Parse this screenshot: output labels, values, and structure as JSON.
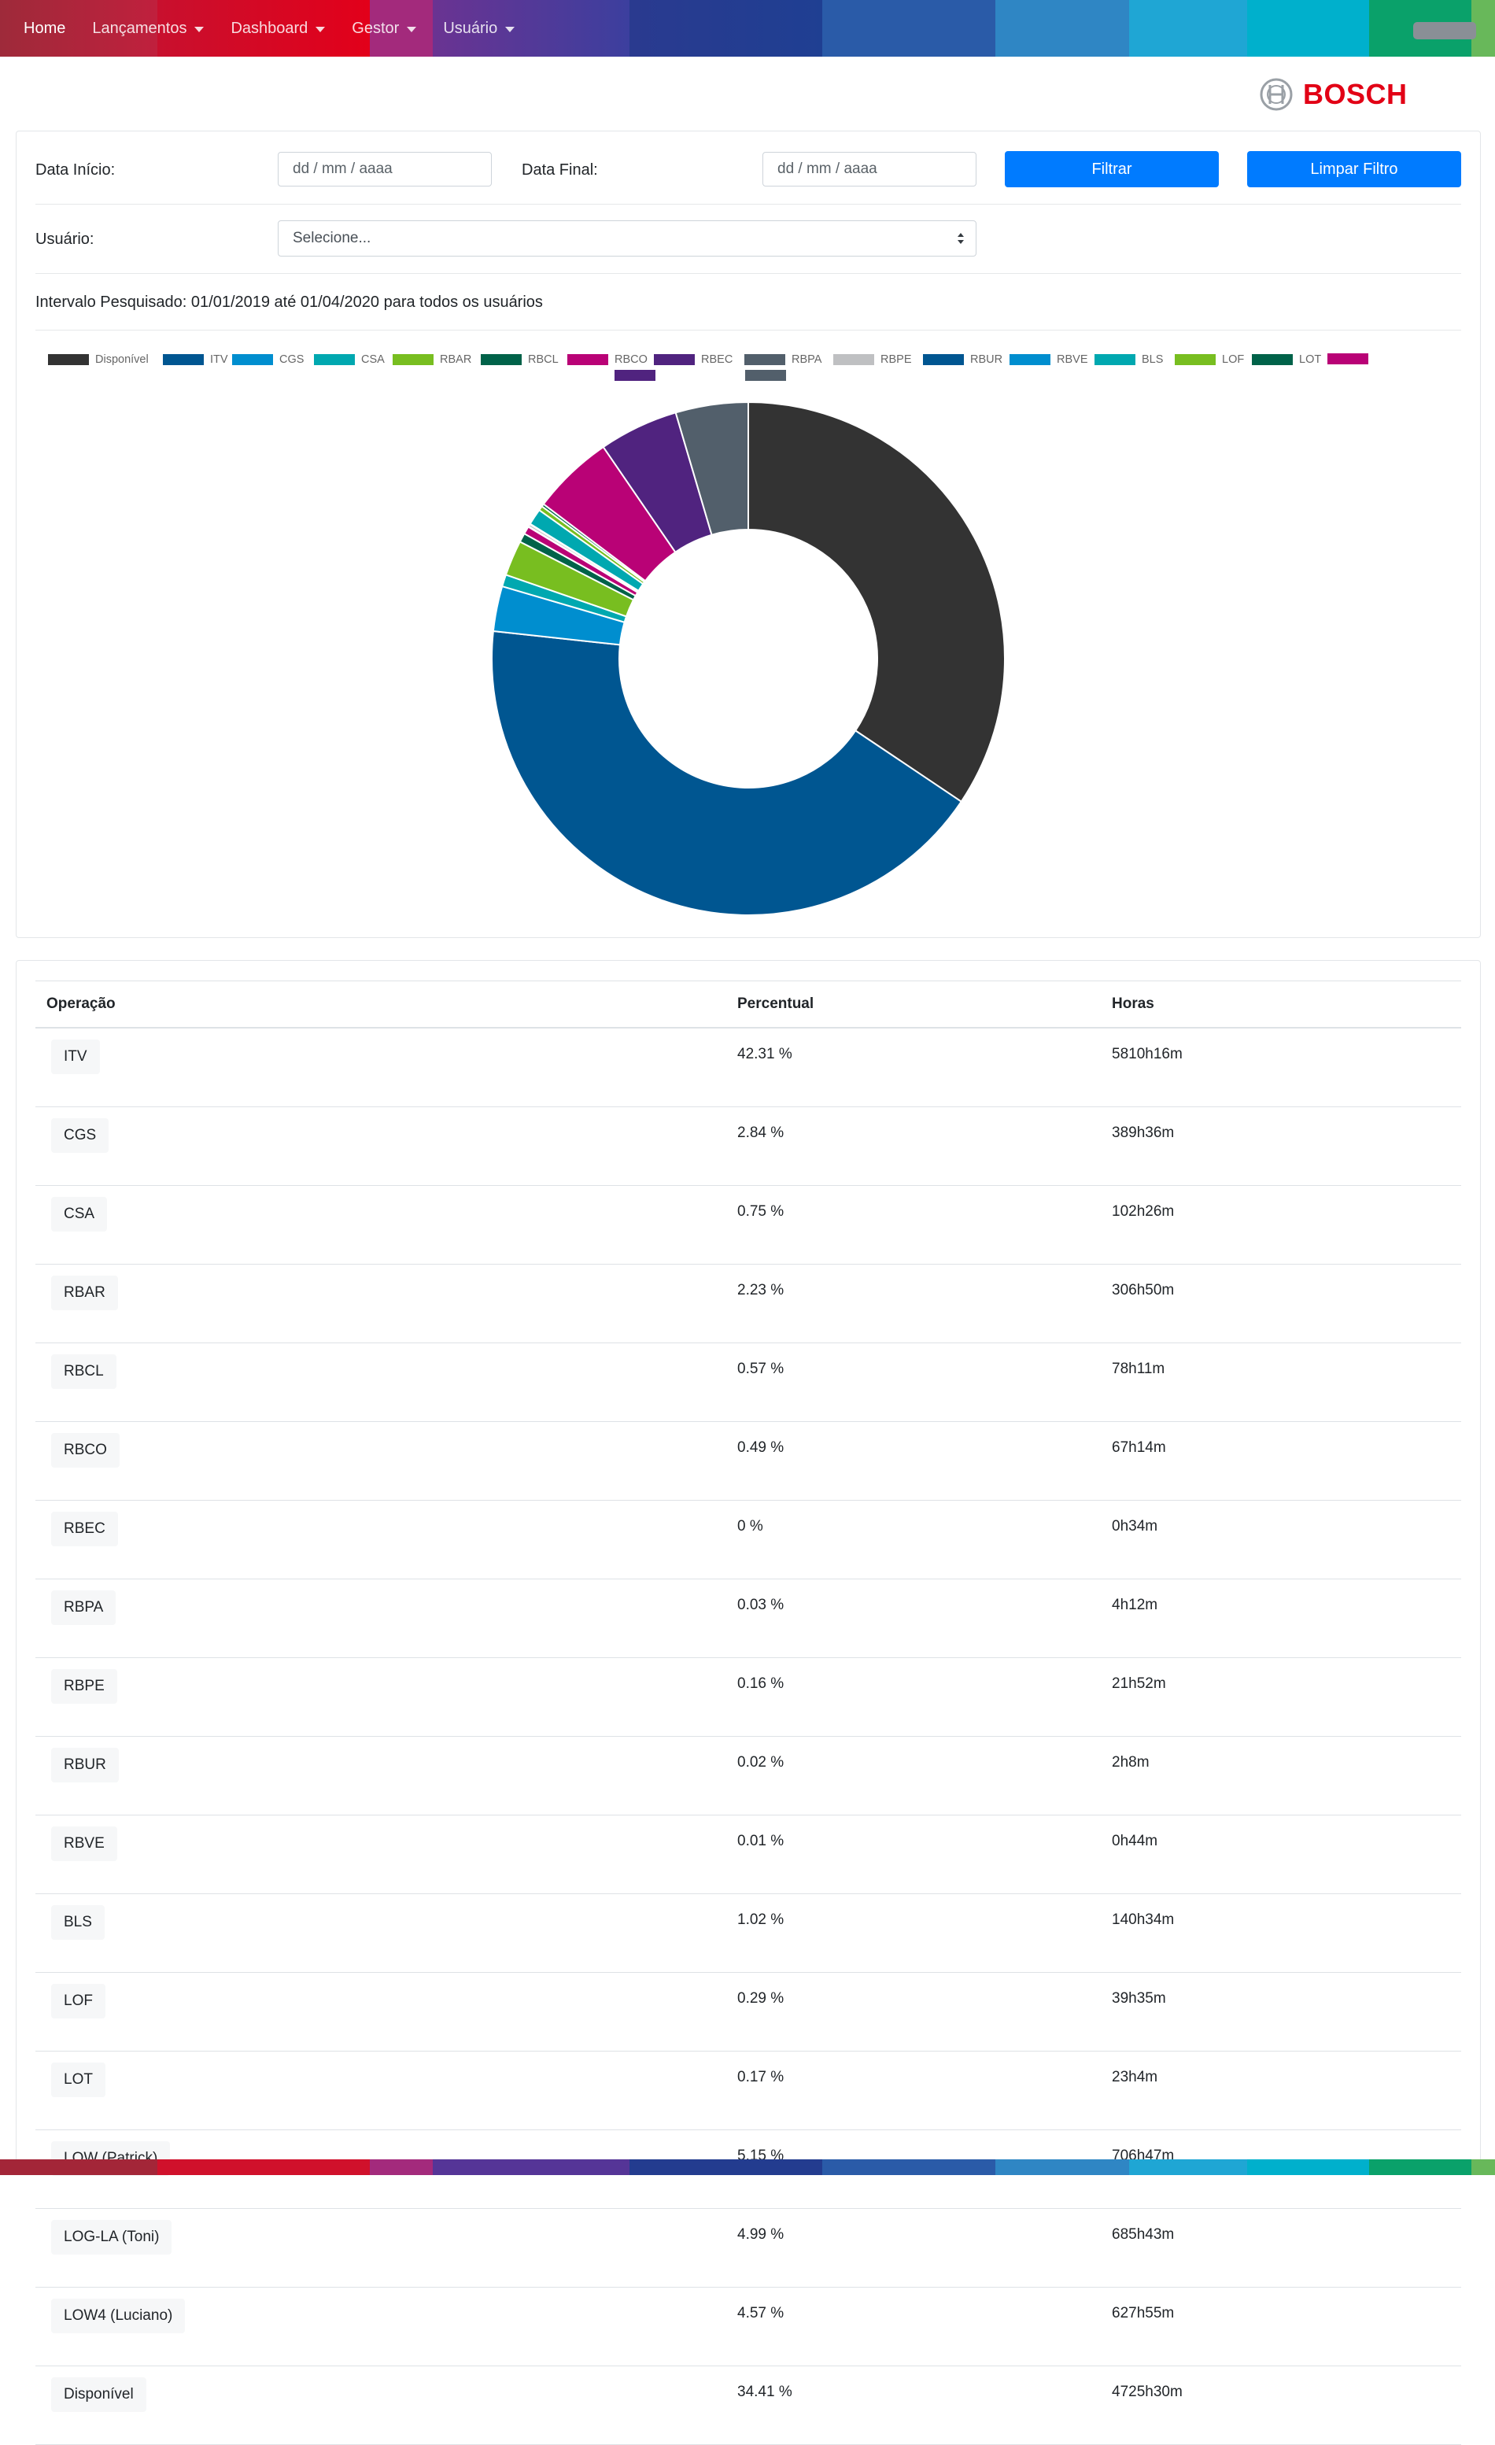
{
  "nav": {
    "items": [
      {
        "label": "Home",
        "dropdown": false,
        "active": true
      },
      {
        "label": "Lançamentos",
        "dropdown": true,
        "active": false
      },
      {
        "label": "Dashboard",
        "dropdown": true,
        "active": false
      },
      {
        "label": "Gestor",
        "dropdown": true,
        "active": false
      },
      {
        "label": "Usuário",
        "dropdown": true,
        "active": false
      }
    ]
  },
  "logo": {
    "text": "BOSCH",
    "color": "#e20015"
  },
  "filter": {
    "date_start_label": "Data Início:",
    "date_start_placeholder": "dd / mm / aaaa",
    "date_end_label": "Data Final:",
    "date_end_placeholder": "dd / mm / aaaa",
    "filter_button": "Filtrar",
    "clear_button": "Limpar Filtro",
    "user_label": "Usuário:",
    "user_select_value": "Selecione...",
    "interval_text": "Intervalo Pesquisado: 01/01/2019 até 01/04/2020 para todos os usuários"
  },
  "chart_data": {
    "type": "pie",
    "donut": true,
    "legend_position": "top",
    "slices": [
      {
        "label": "Disponível",
        "value": 34.41,
        "color": "#333333"
      },
      {
        "label": "ITV",
        "value": 42.31,
        "color": "#005691"
      },
      {
        "label": "CGS",
        "value": 2.84,
        "color": "#008ecf"
      },
      {
        "label": "CSA",
        "value": 0.75,
        "color": "#00a8b0"
      },
      {
        "label": "RBAR",
        "value": 2.23,
        "color": "#78be20"
      },
      {
        "label": "RBCL",
        "value": 0.57,
        "color": "#006249"
      },
      {
        "label": "RBCO",
        "value": 0.49,
        "color": "#b90276"
      },
      {
        "label": "RBEC",
        "value": 0,
        "color": "#50237f"
      },
      {
        "label": "RBPA",
        "value": 0.03,
        "color": "#525f6b"
      },
      {
        "label": "RBPE",
        "value": 0.16,
        "color": "#bfc0c2"
      },
      {
        "label": "RBUR",
        "value": 0.02,
        "color": "#005691"
      },
      {
        "label": "RBVE",
        "value": 0.01,
        "color": "#008ecf"
      },
      {
        "label": "BLS",
        "value": 1.02,
        "color": "#00a8b0"
      },
      {
        "label": "LOF",
        "value": 0.29,
        "color": "#78be20"
      },
      {
        "label": "LOT",
        "value": 0.17,
        "color": "#006249"
      },
      {
        "label": "",
        "value": 5.15,
        "color": "#b90276"
      },
      {
        "label": "",
        "value": 4.99,
        "color": "#50237f"
      },
      {
        "label": "",
        "value": 4.57,
        "color": "#525f6b"
      }
    ]
  },
  "table": {
    "headers": [
      "Operação",
      "Percentual",
      "Horas"
    ],
    "rows": [
      {
        "op": "ITV",
        "pct": "42.31 %",
        "hrs": "5810h16m"
      },
      {
        "op": "CGS",
        "pct": "2.84 %",
        "hrs": "389h36m"
      },
      {
        "op": "CSA",
        "pct": "0.75 %",
        "hrs": "102h26m"
      },
      {
        "op": "RBAR",
        "pct": "2.23 %",
        "hrs": "306h50m"
      },
      {
        "op": "RBCL",
        "pct": "0.57 %",
        "hrs": "78h11m"
      },
      {
        "op": "RBCO",
        "pct": "0.49 %",
        "hrs": "67h14m"
      },
      {
        "op": "RBEC",
        "pct": "0 %",
        "hrs": "0h34m"
      },
      {
        "op": "RBPA",
        "pct": "0.03 %",
        "hrs": "4h12m"
      },
      {
        "op": "RBPE",
        "pct": "0.16 %",
        "hrs": "21h52m"
      },
      {
        "op": "RBUR",
        "pct": "0.02 %",
        "hrs": "2h8m"
      },
      {
        "op": "RBVE",
        "pct": "0.01 %",
        "hrs": "0h44m"
      },
      {
        "op": "BLS",
        "pct": "1.02 %",
        "hrs": "140h34m"
      },
      {
        "op": "LOF",
        "pct": "0.29 %",
        "hrs": "39h35m"
      },
      {
        "op": "LOT",
        "pct": "0.17 %",
        "hrs": "23h4m"
      },
      {
        "op": "LOW (Patrick)",
        "pct": "5.15 %",
        "hrs": "706h47m"
      },
      {
        "op": "LOG-LA (Toni)",
        "pct": "4.99 %",
        "hrs": "685h43m"
      },
      {
        "op": "LOW4 (Luciano)",
        "pct": "4.57 %",
        "hrs": "627h55m"
      },
      {
        "op": "Disponível",
        "pct": "34.41 %",
        "hrs": "4725h30m"
      }
    ]
  }
}
